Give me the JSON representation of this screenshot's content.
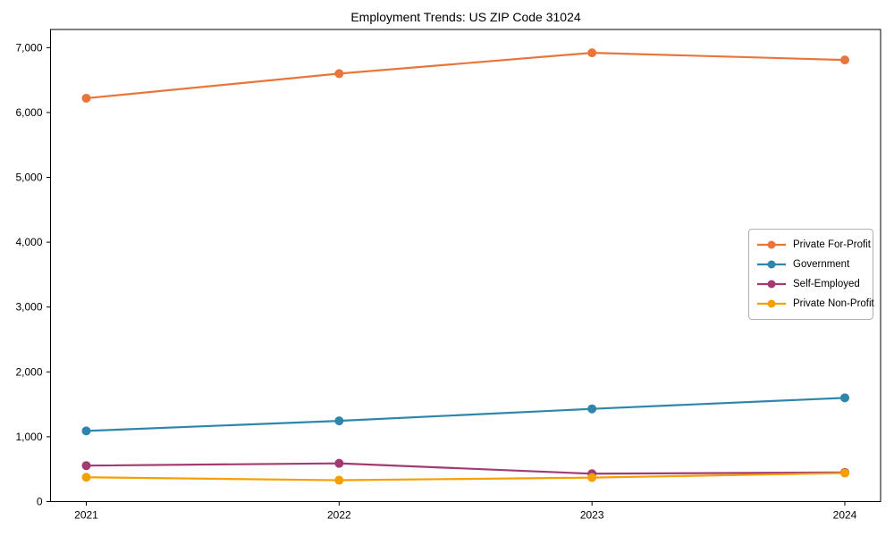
{
  "chart_data": {
    "type": "line",
    "title": "Employment Trends: US ZIP Code 31024",
    "categories": [
      "2021",
      "2022",
      "2023",
      "2024"
    ],
    "series": [
      {
        "name": "Private For-Profit",
        "color": "#E8763C",
        "values": [
          6220,
          6600,
          6920,
          6810
        ]
      },
      {
        "name": "Government",
        "color": "#2E86AB",
        "values": [
          1090,
          1245,
          1430,
          1600
        ]
      },
      {
        "name": "Self-Employed",
        "color": "#A23B72",
        "values": [
          555,
          590,
          430,
          450
        ]
      },
      {
        "name": "Private Non-Profit",
        "color": "#F5A002",
        "values": [
          375,
          330,
          370,
          440
        ]
      }
    ],
    "xlabel": "",
    "ylabel": "",
    "ylim": [
      0,
      7280
    ],
    "yticks": [
      0,
      1000,
      2000,
      3000,
      4000,
      5000,
      6000,
      7000
    ],
    "ytick_labels": [
      "0",
      "1,000",
      "2,000",
      "3,000",
      "4,000",
      "5,000",
      "6,000",
      "7,000"
    ],
    "grid": false,
    "legend_position": "center-right",
    "marker": "circle",
    "axis_color": "#000000",
    "background_color": "#ffffff"
  }
}
